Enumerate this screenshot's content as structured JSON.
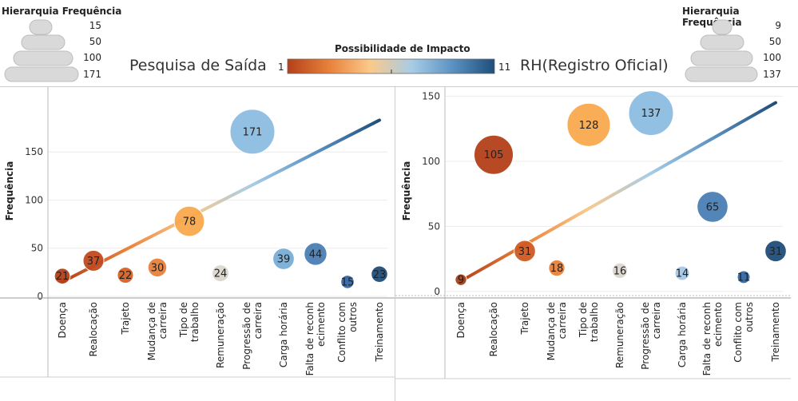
{
  "legend_left": {
    "title": "Hierarquia Frequência",
    "sizes": [
      "15",
      "50",
      "100",
      "171"
    ]
  },
  "legend_right": {
    "title": "Hierarquia Frequência",
    "sizes": [
      "9",
      "50",
      "100",
      "137"
    ]
  },
  "impact_legend": {
    "title": "Possibilidade de Impacto",
    "min_label": "1",
    "max_label": "11",
    "colors": [
      "#b5401a",
      "#e8813a",
      "#fbc98a",
      "#a8cce6",
      "#5a91c2",
      "#1f4e7a"
    ]
  },
  "chart_data": [
    {
      "type": "scatter",
      "title": "Pesquisa de Saída",
      "ylabel": "Frequência",
      "ylim": [
        0,
        190
      ],
      "yticks": [
        0,
        50,
        100,
        150
      ],
      "categories": [
        "Doença",
        "Realocação",
        "Trajeto",
        "Mudança de carreira",
        "Tipo de trabalho",
        "Remuneração",
        "Progressão de carreira",
        "Carga horária",
        "Falta de reconhecimento",
        "Conflito com outros",
        "Treinamento"
      ],
      "category_lines": [
        [
          "Doença"
        ],
        [
          "Realocação"
        ],
        [
          "Trajeto"
        ],
        [
          "Mudança de",
          "carreira"
        ],
        [
          "Tipo de",
          "trabalho"
        ],
        [
          "Remuneração"
        ],
        [
          "Progressão de",
          "carreira"
        ],
        [
          "Carga horária"
        ],
        [
          "Falta de reconh",
          "ecimento"
        ],
        [
          "Conflito com",
          "outros"
        ],
        [
          "Treinamento"
        ]
      ],
      "values": [
        21,
        37,
        22,
        30,
        78,
        24,
        171,
        39,
        44,
        15,
        23
      ],
      "colors": [
        "#b5401a",
        "#c04a20",
        "#d46325",
        "#e8813a",
        "#f9a94e",
        "#dcd8cf",
        "#8dbde2",
        "#7aaed6",
        "#4a7fb5",
        "#3268a3",
        "#1f4e7a"
      ],
      "trend_line": {
        "start": 15,
        "end": 183
      }
    },
    {
      "type": "scatter",
      "title": "RH(Registro Oficial)",
      "ylabel": "Frequência",
      "ylim": [
        -5,
        157
      ],
      "yticks": [
        0,
        50,
        100,
        150
      ],
      "categories": [
        "Doença",
        "Realocação",
        "Trajeto",
        "Mudança de carreira",
        "Tipo de trabalho",
        "Remuneração",
        "Progressão de carreira",
        "Carga horária",
        "Falta de reconhecimento",
        "Conflito com outros",
        "Treinamento"
      ],
      "category_lines": [
        [
          "Doença"
        ],
        [
          "Realocação"
        ],
        [
          "Trajeto"
        ],
        [
          "Mudança de",
          "carreira"
        ],
        [
          "Tipo de",
          "trabalho"
        ],
        [
          "Remuneração"
        ],
        [
          "Progressão de",
          "carreira"
        ],
        [
          "Carga horária"
        ],
        [
          "Falta de reconh",
          "ecimento"
        ],
        [
          "Conflito com",
          "outros"
        ],
        [
          "Treinamento"
        ]
      ],
      "values": [
        9,
        105,
        31,
        18,
        128,
        16,
        137,
        14,
        65,
        11,
        31
      ],
      "colors": [
        "#a8421c",
        "#b5401a",
        "#d05a22",
        "#e8813a",
        "#f9a94e",
        "#dcd8cf",
        "#8dbde2",
        "#a6c8e4",
        "#4a7fb5",
        "#3268a3",
        "#1f4e7a"
      ],
      "trend_line": {
        "start": 8,
        "end": 145
      }
    }
  ]
}
